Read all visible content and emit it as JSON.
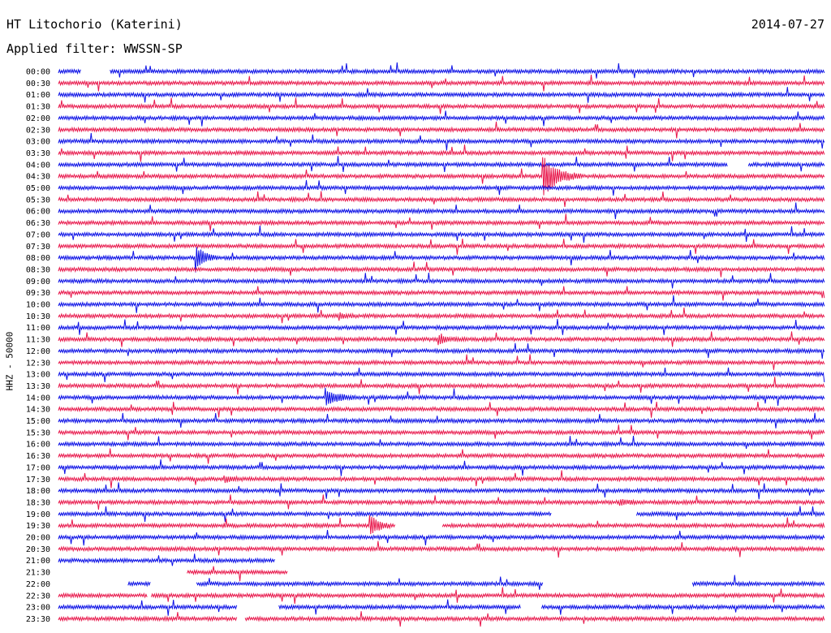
{
  "header": {
    "station": "HT Litochorio (Katerini)",
    "date": "2014-07-27",
    "filter": "Applied filter: WWSSN-SP"
  },
  "colors": {
    "even_row": "#0b10e6",
    "odd_row": "#e8174b"
  },
  "chart_data": {
    "type": "line",
    "title": "HT Litochorio (Katerini)",
    "ylabel": "HHZ - 50000",
    "xlabel": "",
    "time_labels": [
      "00:00",
      "00:30",
      "01:00",
      "01:30",
      "02:00",
      "02:30",
      "03:00",
      "03:30",
      "04:00",
      "04:30",
      "05:00",
      "05:30",
      "06:00",
      "06:30",
      "07:00",
      "07:30",
      "08:00",
      "08:30",
      "09:00",
      "09:30",
      "10:00",
      "10:30",
      "11:00",
      "11:30",
      "12:00",
      "12:30",
      "13:00",
      "13:30",
      "14:00",
      "14:30",
      "15:00",
      "15:30",
      "16:00",
      "16:30",
      "17:00",
      "17:30",
      "18:00",
      "18:30",
      "19:00",
      "19:30",
      "20:00",
      "20:30",
      "21:00",
      "21:30",
      "22:00",
      "22:30",
      "23:00",
      "23:30"
    ],
    "row_minutes": 30,
    "events": [
      {
        "row": "04:30",
        "minute": 19.0,
        "amplitude": 1.0,
        "duration_min": 1.5
      },
      {
        "row": "08:00",
        "minute": 5.4,
        "amplitude": 0.65,
        "duration_min": 0.8
      },
      {
        "row": "14:00",
        "minute": 10.5,
        "amplitude": 0.45,
        "duration_min": 1.1
      },
      {
        "row": "19:30",
        "minute": 12.2,
        "amplitude": 0.65,
        "duration_min": 0.8
      },
      {
        "row": "11:30",
        "minute": 14.9,
        "amplitude": 0.3,
        "duration_min": 0.7
      },
      {
        "row": "10:30",
        "minute": 11.0,
        "amplitude": 0.15,
        "duration_min": 0.6
      },
      {
        "row": "18:30",
        "minute": 22.0,
        "amplitude": 0.15,
        "duration_min": 0.8
      },
      {
        "row": "17:30",
        "minute": 6.5,
        "amplitude": 0.15,
        "duration_min": 0.8
      }
    ],
    "gaps": [
      {
        "row": "00:00",
        "from_minute": 0.9,
        "to_minute": 2.0
      },
      {
        "row": "04:00",
        "from_minute": 26.2,
        "to_minute": 27.0
      },
      {
        "row": "19:00",
        "from_minute": 19.3,
        "to_minute": 22.6
      },
      {
        "row": "19:30",
        "from_minute": 13.2,
        "to_minute": 15.0
      },
      {
        "row": "21:00",
        "from_minute": 8.5,
        "to_minute": 30.0
      },
      {
        "row": "21:30",
        "from_minute": 0.0,
        "to_minute": 5.0
      },
      {
        "row": "21:30",
        "from_minute": 9.0,
        "to_minute": 30.0
      },
      {
        "row": "22:00",
        "from_minute": 0.0,
        "to_minute": 2.7
      },
      {
        "row": "22:00",
        "from_minute": 3.6,
        "to_minute": 5.4
      },
      {
        "row": "22:00",
        "from_minute": 19.0,
        "to_minute": 24.8
      },
      {
        "row": "22:30",
        "from_minute": 3.5,
        "to_minute": 3.6
      },
      {
        "row": "23:00",
        "from_minute": 7.0,
        "to_minute": 8.6
      },
      {
        "row": "23:00",
        "from_minute": 18.1,
        "to_minute": 18.9
      },
      {
        "row": "23:30",
        "from_minute": 7.0,
        "to_minute": 7.3
      }
    ]
  }
}
